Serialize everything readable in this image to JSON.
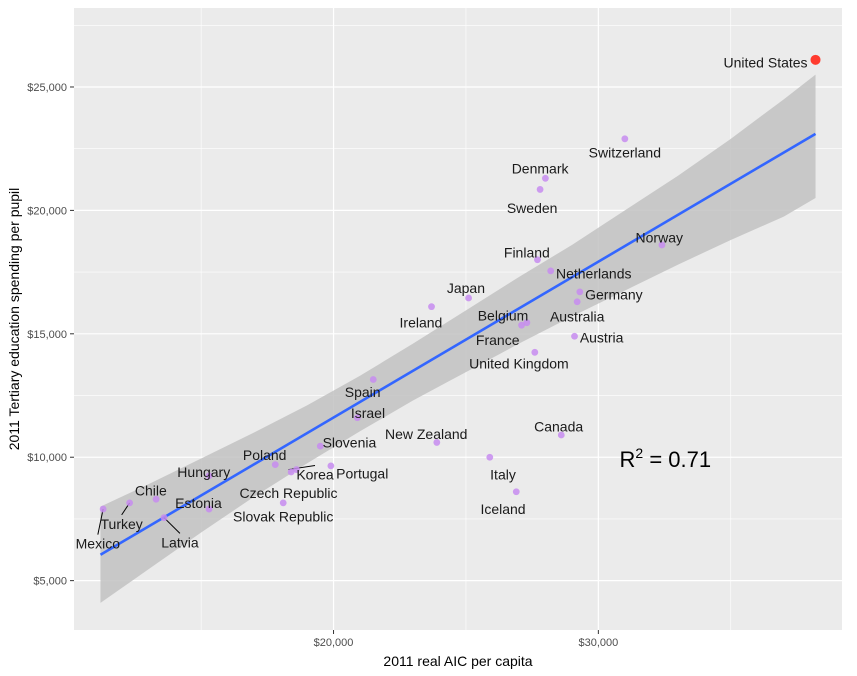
{
  "chart_data": {
    "type": "scatter",
    "title": "",
    "xlabel": "2011 real AIC per capita",
    "ylabel": "2011 Tertiary education spending per pupil",
    "xlim": [
      10200,
      39200
    ],
    "ylim": [
      3000,
      28200
    ],
    "x_ticks": [
      20000,
      30000
    ],
    "x_tick_labels": [
      "$20,000",
      "$30,000"
    ],
    "y_ticks": [
      5000,
      10000,
      15000,
      20000,
      25000
    ],
    "y_tick_labels": [
      "$5,000",
      "$10,000",
      "$15,000",
      "$20,000",
      "$25,000"
    ],
    "grid": true,
    "annotation": {
      "prefix": "R",
      "superscript": "2",
      "text": " = 0.71",
      "x": 30800,
      "y": 9600
    },
    "fit_line": {
      "x": [
        11200,
        38200
      ],
      "y": [
        6050,
        23100
      ]
    },
    "confidence_band": {
      "x": [
        11200,
        13000,
        15000,
        17000,
        19000,
        21000,
        23000,
        25000,
        27000,
        29000,
        31000,
        33000,
        35000,
        37000,
        38200
      ],
      "upper": [
        8000,
        8900,
        9950,
        11000,
        12100,
        13300,
        14600,
        15950,
        17300,
        18600,
        20000,
        21400,
        22900,
        24500,
        25500
      ],
      "lower": [
        4100,
        5450,
        6950,
        8400,
        9750,
        11050,
        12300,
        13450,
        14600,
        15700,
        16750,
        17800,
        18800,
        19750,
        20500
      ]
    },
    "colors": {
      "points": "#c78cf0",
      "highlight": "#ff3b2f",
      "fit_line": "#3366ff",
      "band": "#c2c2c2",
      "panel": "#ebebeb",
      "grid": "#ffffff"
    },
    "points": [
      {
        "label": "United States",
        "x": 38200,
        "y": 26100,
        "highlight": true,
        "label_x": 37900,
        "label_y": 26000,
        "anchor": "end"
      },
      {
        "label": "Switzerland",
        "x": 31000,
        "y": 22900,
        "label_x": 31000,
        "label_y": 22350,
        "anchor": "middle"
      },
      {
        "label": "Denmark",
        "x": 28000,
        "y": 21300,
        "label_x": 27800,
        "label_y": 21700,
        "anchor": "middle"
      },
      {
        "label": "Sweden",
        "x": 27800,
        "y": 20850,
        "label_x": 27500,
        "label_y": 20100,
        "anchor": "middle"
      },
      {
        "label": "Norway",
        "x": 32400,
        "y": 18600,
        "label_x": 32300,
        "label_y": 18900,
        "anchor": "middle"
      },
      {
        "label": "Finland",
        "x": 27700,
        "y": 18000,
        "label_x": 27300,
        "label_y": 18300,
        "anchor": "middle"
      },
      {
        "label": "Netherlands",
        "x": 28200,
        "y": 17550,
        "label_x": 28400,
        "label_y": 17450,
        "anchor": "start"
      },
      {
        "label": "Japan",
        "x": 25100,
        "y": 16450,
        "label_x": 25000,
        "label_y": 16850,
        "anchor": "middle"
      },
      {
        "label": "Germany",
        "x": 29300,
        "y": 16700,
        "label_x": 29500,
        "label_y": 16600,
        "anchor": "start"
      },
      {
        "label": "Ireland",
        "x": 23700,
        "y": 16100,
        "label_x": 23300,
        "label_y": 15450,
        "anchor": "middle"
      },
      {
        "label": "Australia",
        "x": 29200,
        "y": 16300,
        "label_x": 29200,
        "label_y": 15700,
        "anchor": "middle"
      },
      {
        "label": "Belgium",
        "x": 27300,
        "y": 15450,
        "label_x": 26400,
        "label_y": 15750,
        "anchor": "middle"
      },
      {
        "label": "Austria",
        "x": 29100,
        "y": 14900,
        "label_x": 29300,
        "label_y": 14850,
        "anchor": "start"
      },
      {
        "label": "France",
        "x": 27100,
        "y": 15350,
        "label_x": 26200,
        "label_y": 14750,
        "anchor": "middle"
      },
      {
        "label": "United Kingdom",
        "x": 27600,
        "y": 14250,
        "label_x": 27000,
        "label_y": 13800,
        "anchor": "middle"
      },
      {
        "label": "Spain",
        "x": 21500,
        "y": 13150,
        "label_x": 21100,
        "label_y": 12650,
        "anchor": "middle"
      },
      {
        "label": "Israel",
        "x": 20900,
        "y": 11600,
        "label_x": 21300,
        "label_y": 11800,
        "anchor": "middle"
      },
      {
        "label": "Canada",
        "x": 28600,
        "y": 10900,
        "label_x": 28500,
        "label_y": 11250,
        "anchor": "middle"
      },
      {
        "label": "New Zealand",
        "x": 23900,
        "y": 10600,
        "label_x": 23500,
        "label_y": 10950,
        "anchor": "middle"
      },
      {
        "label": "Slovenia",
        "x": 19500,
        "y": 10450,
        "label_x": 20600,
        "label_y": 10600,
        "anchor": "middle"
      },
      {
        "label": "Italy",
        "x": 25900,
        "y": 10000,
        "label_x": 26400,
        "label_y": 9300,
        "anchor": "middle"
      },
      {
        "label": "Poland",
        "x": 17800,
        "y": 9700,
        "label_x": 17400,
        "label_y": 10100,
        "anchor": "middle"
      },
      {
        "label": "Korea",
        "x": 18600,
        "y": 9500,
        "label_x": 19300,
        "label_y": 9300,
        "anchor": "middle",
        "leader": [
          18300,
          9500
        ]
      },
      {
        "label": "Portugal",
        "x": 19900,
        "y": 9650,
        "label_x": 20100,
        "label_y": 9350,
        "anchor": "start"
      },
      {
        "label": "Hungary",
        "x": 15300,
        "y": 9250,
        "label_x": 15100,
        "label_y": 9400,
        "anchor": "middle"
      },
      {
        "label": "Czech Republic",
        "x": 18400,
        "y": 9400,
        "label_x": 18300,
        "label_y": 8550,
        "anchor": "middle"
      },
      {
        "label": "Estonia",
        "x": 15300,
        "y": 7900,
        "label_x": 14900,
        "label_y": 8150,
        "anchor": "middle"
      },
      {
        "label": "Chile",
        "x": 13300,
        "y": 8300,
        "label_x": 13100,
        "label_y": 8650,
        "anchor": "middle"
      },
      {
        "label": "Iceland",
        "x": 26900,
        "y": 8600,
        "label_x": 26400,
        "label_y": 7900,
        "anchor": "middle"
      },
      {
        "label": "Slovak Republic",
        "x": 18100,
        "y": 8150,
        "label_x": 18100,
        "label_y": 7600,
        "anchor": "middle"
      },
      {
        "label": "Turkey",
        "x": 12300,
        "y": 8150,
        "label_x": 12000,
        "label_y": 7300,
        "anchor": "middle",
        "leader": [
          12300,
          8150
        ]
      },
      {
        "label": "Latvia",
        "x": 13600,
        "y": 7550,
        "label_x": 14200,
        "label_y": 6550,
        "anchor": "middle",
        "leader": [
          13600,
          7550
        ]
      },
      {
        "label": "Mexico",
        "x": 11300,
        "y": 7900,
        "label_x": 11100,
        "label_y": 6500,
        "anchor": "middle",
        "leader": [
          11300,
          7900
        ]
      }
    ]
  }
}
